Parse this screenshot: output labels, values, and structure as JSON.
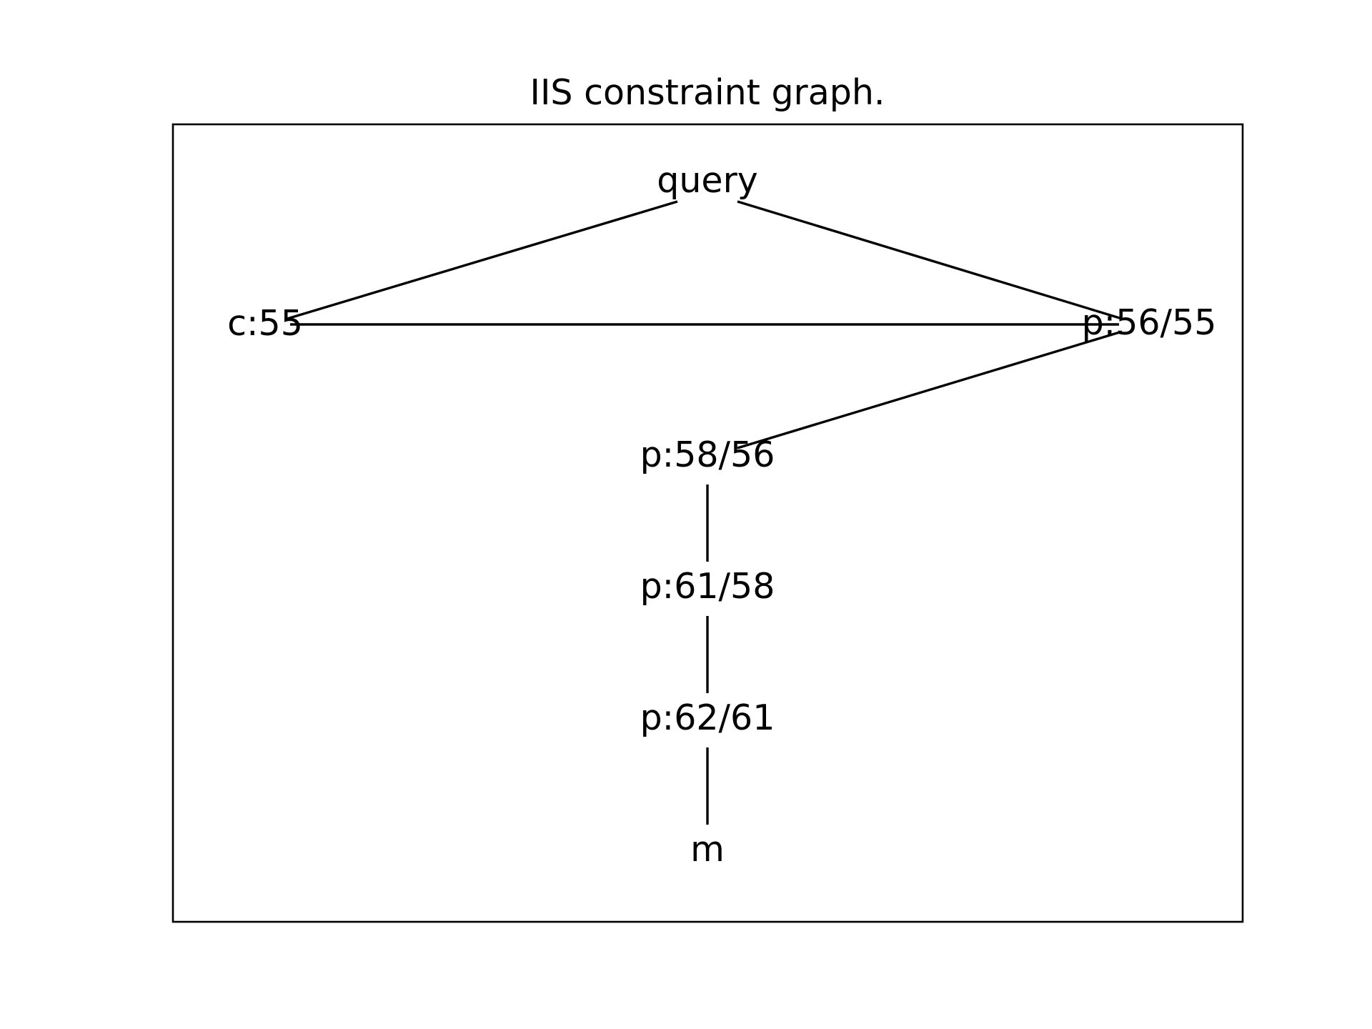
{
  "title": "IIS constraint graph.",
  "nodes": {
    "query": "query",
    "c55": "c:55",
    "p56_55": "p:56/55",
    "p58_56": "p:58/56",
    "p61_58": "p:61/58",
    "p62_61": "p:62/61",
    "m": "m"
  },
  "edges": [
    {
      "from": "query",
      "to": "c:55"
    },
    {
      "from": "query",
      "to": "p:56/55"
    },
    {
      "from": "c:55",
      "to": "p:56/55"
    },
    {
      "from": "p:56/55",
      "to": "p:58/56"
    },
    {
      "from": "p:58/56",
      "to": "p:61/58"
    },
    {
      "from": "p:61/58",
      "to": "p:62/61"
    },
    {
      "from": "p:62/61",
      "to": "m"
    }
  ]
}
